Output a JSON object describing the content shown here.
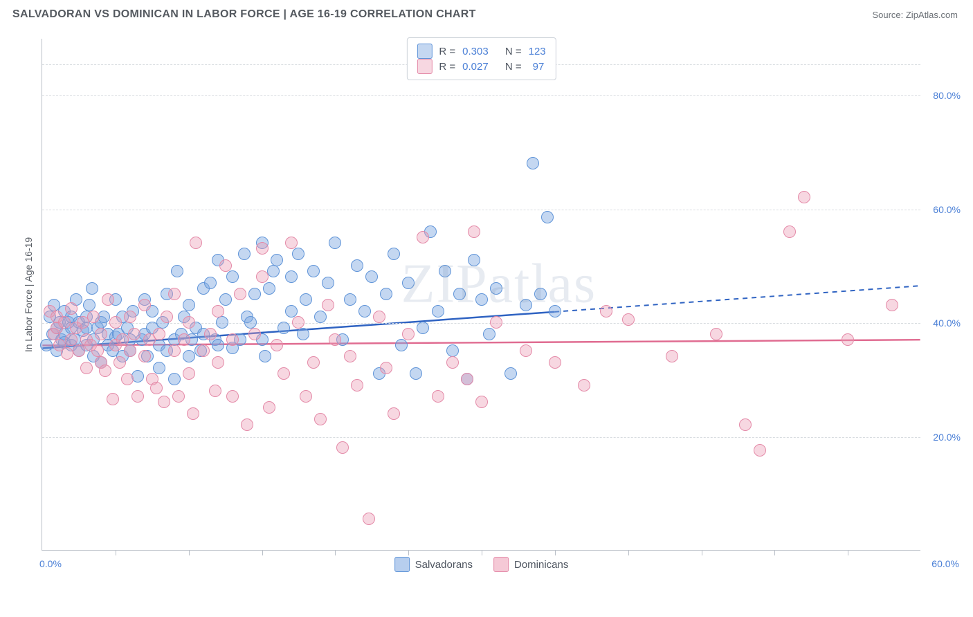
{
  "title": "SALVADORAN VS DOMINICAN IN LABOR FORCE | AGE 16-19 CORRELATION CHART",
  "source_label": "Source: ZipAtlas.com",
  "watermark": "ZIPatlas",
  "ylabel": "In Labor Force | Age 16-19",
  "chart": {
    "type": "scatter",
    "xlim": [
      0,
      60
    ],
    "ylim": [
      0,
      90
    ],
    "x_tick_step": 5,
    "x_first_label": "0.0%",
    "x_last_label": "60.0%",
    "y_gridlines": [
      20,
      40,
      60,
      80,
      85.5
    ],
    "y_labels": [
      {
        "v": 20,
        "t": "20.0%"
      },
      {
        "v": 40,
        "t": "40.0%"
      },
      {
        "v": 60,
        "t": "60.0%"
      },
      {
        "v": 80,
        "t": "80.0%"
      }
    ],
    "background_color": "#ffffff",
    "grid_color": "#d8dce0",
    "axis_color": "#b9bfc7",
    "point_radius": 9,
    "point_border_width": 1.5,
    "series": [
      {
        "name": "Salvadorans",
        "fill": "rgba(124,166,224,0.45)",
        "stroke": "#5f94d8",
        "reg_color": "#2f63c2",
        "reg_y_at_xmin": 35.5,
        "reg_y_at_xmax": 46.5,
        "reg_solid_until_x": 35,
        "R": "0.303",
        "N": "123",
        "points": [
          [
            0.3,
            36
          ],
          [
            0.5,
            41
          ],
          [
            0.7,
            38
          ],
          [
            0.8,
            43
          ],
          [
            1,
            35
          ],
          [
            1,
            39
          ],
          [
            1.2,
            40
          ],
          [
            1.3,
            37
          ],
          [
            1.5,
            42
          ],
          [
            1.5,
            36.5
          ],
          [
            1.5,
            38
          ],
          [
            1.8,
            40
          ],
          [
            2,
            36
          ],
          [
            2,
            39
          ],
          [
            2,
            41
          ],
          [
            2.2,
            37
          ],
          [
            2.3,
            44
          ],
          [
            2.5,
            35
          ],
          [
            2.5,
            40
          ],
          [
            2.8,
            38.5
          ],
          [
            3,
            36
          ],
          [
            3,
            41
          ],
          [
            3,
            39
          ],
          [
            3.2,
            43
          ],
          [
            3.4,
            46
          ],
          [
            3.5,
            34
          ],
          [
            3.5,
            37
          ],
          [
            3.8,
            39
          ],
          [
            4,
            33
          ],
          [
            4,
            40
          ],
          [
            4.2,
            41
          ],
          [
            4.5,
            38
          ],
          [
            4.5,
            36
          ],
          [
            4.8,
            35
          ],
          [
            5,
            37.5
          ],
          [
            5,
            44
          ],
          [
            5.2,
            38
          ],
          [
            5.5,
            41
          ],
          [
            5.5,
            34
          ],
          [
            5.8,
            39
          ],
          [
            6,
            37
          ],
          [
            6,
            35
          ],
          [
            6.2,
            42
          ],
          [
            6.5,
            30.5
          ],
          [
            6.8,
            37
          ],
          [
            7,
            44
          ],
          [
            7,
            38
          ],
          [
            7.2,
            34
          ],
          [
            7.5,
            39
          ],
          [
            7.5,
            42
          ],
          [
            8,
            32
          ],
          [
            8,
            36
          ],
          [
            8.2,
            40
          ],
          [
            8.5,
            45
          ],
          [
            8.5,
            35
          ],
          [
            9,
            37
          ],
          [
            9,
            30
          ],
          [
            9.2,
            49
          ],
          [
            9.5,
            38
          ],
          [
            9.7,
            41
          ],
          [
            10,
            34
          ],
          [
            10,
            43
          ],
          [
            10.2,
            37
          ],
          [
            10.5,
            39
          ],
          [
            10.8,
            35
          ],
          [
            11,
            46
          ],
          [
            11,
            38
          ],
          [
            11.5,
            47
          ],
          [
            11.8,
            37
          ],
          [
            12,
            36
          ],
          [
            12,
            51
          ],
          [
            12.3,
            40
          ],
          [
            12.5,
            44
          ],
          [
            13,
            35.5
          ],
          [
            13,
            48
          ],
          [
            13.5,
            37
          ],
          [
            13.8,
            52
          ],
          [
            14,
            41
          ],
          [
            14.2,
            40
          ],
          [
            14.5,
            45
          ],
          [
            15,
            37
          ],
          [
            15,
            54
          ],
          [
            15.2,
            34
          ],
          [
            15.5,
            46
          ],
          [
            15.8,
            49
          ],
          [
            16,
            51
          ],
          [
            16.5,
            39
          ],
          [
            17,
            48
          ],
          [
            17,
            42
          ],
          [
            17.5,
            52
          ],
          [
            17.8,
            38
          ],
          [
            18,
            44
          ],
          [
            18.5,
            49
          ],
          [
            19,
            41
          ],
          [
            19.5,
            47
          ],
          [
            20,
            54
          ],
          [
            20.5,
            37
          ],
          [
            21,
            44
          ],
          [
            21.5,
            50
          ],
          [
            22,
            42
          ],
          [
            22.5,
            48
          ],
          [
            23,
            31
          ],
          [
            23.5,
            45
          ],
          [
            24,
            52
          ],
          [
            24.5,
            36
          ],
          [
            25,
            47
          ],
          [
            25.5,
            31
          ],
          [
            26,
            39
          ],
          [
            26.5,
            56
          ],
          [
            27,
            42
          ],
          [
            27.5,
            49
          ],
          [
            28,
            35
          ],
          [
            28.5,
            45
          ],
          [
            29,
            30
          ],
          [
            29.5,
            51
          ],
          [
            30,
            44
          ],
          [
            30.5,
            38
          ],
          [
            31,
            46
          ],
          [
            32,
            31
          ],
          [
            33,
            43
          ],
          [
            33.5,
            68
          ],
          [
            34,
            45
          ],
          [
            34.5,
            58.5
          ],
          [
            35,
            42
          ]
        ]
      },
      {
        "name": "Dominicans",
        "fill": "rgba(236,156,180,0.4)",
        "stroke": "#e48aa8",
        "reg_color": "#e06c91",
        "reg_y_at_xmin": 36.0,
        "reg_y_at_xmax": 37.0,
        "reg_solid_until_x": 60,
        "R": "0.027",
        "N": "97",
        "points": [
          [
            0.5,
            42
          ],
          [
            0.8,
            38
          ],
          [
            1,
            39
          ],
          [
            1,
            41
          ],
          [
            1.2,
            36
          ],
          [
            1.5,
            40
          ],
          [
            1.7,
            34.5
          ],
          [
            2,
            37
          ],
          [
            2,
            42.5
          ],
          [
            2.3,
            39
          ],
          [
            2.5,
            35
          ],
          [
            2.8,
            40
          ],
          [
            3,
            37
          ],
          [
            3,
            32
          ],
          [
            3.3,
            36
          ],
          [
            3.5,
            41
          ],
          [
            3.8,
            35
          ],
          [
            4,
            38
          ],
          [
            4,
            33
          ],
          [
            4.3,
            31.5
          ],
          [
            4.5,
            44
          ],
          [
            4.8,
            26.5
          ],
          [
            5,
            36
          ],
          [
            5,
            40
          ],
          [
            5.3,
            33
          ],
          [
            5.5,
            37
          ],
          [
            5.8,
            30
          ],
          [
            6,
            41
          ],
          [
            6,
            35
          ],
          [
            6.3,
            38
          ],
          [
            6.5,
            27
          ],
          [
            7,
            34
          ],
          [
            7,
            43
          ],
          [
            7.3,
            37
          ],
          [
            7.5,
            30
          ],
          [
            7.8,
            28.5
          ],
          [
            8,
            38
          ],
          [
            8.3,
            26
          ],
          [
            8.5,
            41
          ],
          [
            9,
            35
          ],
          [
            9,
            45
          ],
          [
            9.3,
            27
          ],
          [
            9.7,
            37
          ],
          [
            10,
            31
          ],
          [
            10,
            40
          ],
          [
            10.3,
            24
          ],
          [
            10.5,
            54
          ],
          [
            11,
            35
          ],
          [
            11.5,
            38
          ],
          [
            11.8,
            28
          ],
          [
            12,
            42
          ],
          [
            12,
            33
          ],
          [
            12.5,
            50
          ],
          [
            13,
            27
          ],
          [
            13,
            37
          ],
          [
            13.5,
            45
          ],
          [
            14,
            22
          ],
          [
            14.5,
            38
          ],
          [
            15,
            53
          ],
          [
            15,
            48
          ],
          [
            15.5,
            25
          ],
          [
            16,
            36
          ],
          [
            16.5,
            31
          ],
          [
            17,
            54
          ],
          [
            17.5,
            40
          ],
          [
            18,
            27
          ],
          [
            18.5,
            33
          ],
          [
            19,
            23
          ],
          [
            19.5,
            43
          ],
          [
            20,
            37
          ],
          [
            20.5,
            18
          ],
          [
            21,
            34
          ],
          [
            21.5,
            29
          ],
          [
            22.3,
            5.5
          ],
          [
            23,
            41
          ],
          [
            23.5,
            32
          ],
          [
            24,
            24
          ],
          [
            25,
            38
          ],
          [
            26,
            55
          ],
          [
            27,
            27
          ],
          [
            28,
            33
          ],
          [
            29,
            30
          ],
          [
            29.5,
            56
          ],
          [
            30,
            26
          ],
          [
            31,
            40
          ],
          [
            33,
            35
          ],
          [
            35,
            33
          ],
          [
            37,
            29
          ],
          [
            38.5,
            42
          ],
          [
            40,
            40.5
          ],
          [
            43,
            34
          ],
          [
            46,
            38
          ],
          [
            48,
            22
          ],
          [
            49,
            17.5
          ],
          [
            51,
            56
          ],
          [
            52,
            62
          ],
          [
            55,
            37
          ],
          [
            58,
            43
          ]
        ]
      }
    ]
  },
  "legend_top": {
    "r_label": "R =",
    "n_label": "N ="
  },
  "legend_bottom": [
    {
      "label": "Salvadorans",
      "fill": "rgba(124,166,224,0.55)",
      "stroke": "#5f94d8"
    },
    {
      "label": "Dominicans",
      "fill": "rgba(236,156,180,0.55)",
      "stroke": "#e48aa8"
    }
  ]
}
